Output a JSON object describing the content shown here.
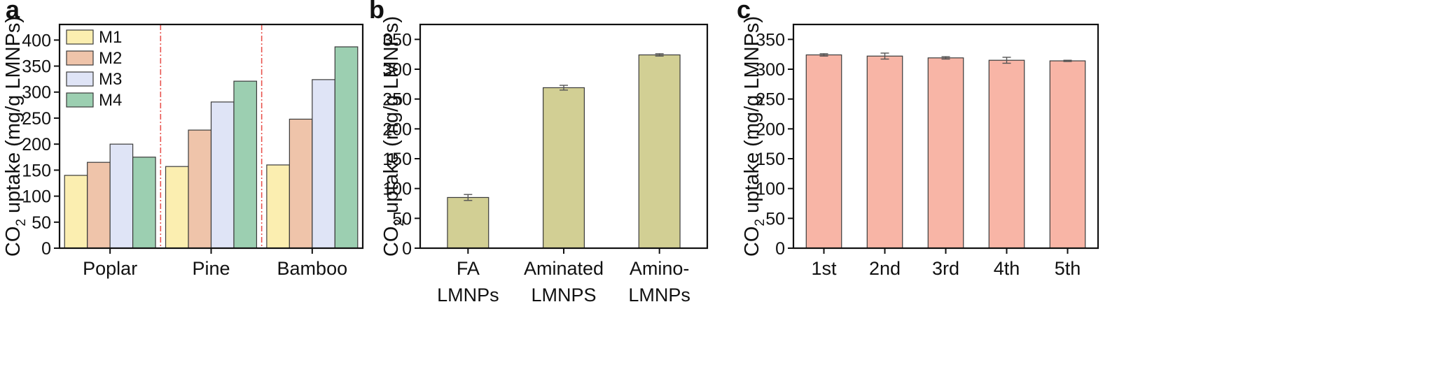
{
  "chart_data": [
    {
      "panel_label": "a",
      "type": "bar",
      "categories": [
        "Poplar",
        "Pine",
        "Bamboo"
      ],
      "series": [
        {
          "name": "M1",
          "values": [
            140,
            157,
            160
          ],
          "color": "#fbeeb0"
        },
        {
          "name": "M2",
          "values": [
            165,
            227,
            248
          ],
          "color": "#efc4aa"
        },
        {
          "name": "M3",
          "values": [
            200,
            281,
            324
          ],
          "color": "#dfe4f6"
        },
        {
          "name": "M4",
          "values": [
            175,
            321,
            387
          ],
          "color": "#9ccfb1"
        }
      ],
      "ylabel_parts": [
        "CO",
        "2",
        " uptake (mg/g LMNPs)"
      ],
      "ylim": [
        0,
        430
      ],
      "yticks": [
        0,
        50,
        100,
        150,
        200,
        250,
        300,
        350,
        400
      ],
      "legend": "top-left",
      "category_separators": "dash-dot",
      "separator_color": "#e8544e"
    },
    {
      "panel_label": "b",
      "type": "bar",
      "categories": [
        [
          "FA",
          "LMNPs"
        ],
        [
          "Aminated",
          "LMNPS"
        ],
        [
          "Amino-",
          "LMNPs"
        ]
      ],
      "values": [
        85,
        269,
        324
      ],
      "errors": [
        5,
        4,
        2
      ],
      "color": "#d2cf94",
      "ylabel_parts": [
        "CO",
        "2",
        " uptake (mg/g LMNPs)"
      ],
      "ylim": [
        0,
        375
      ],
      "yticks": [
        0,
        50,
        100,
        150,
        200,
        250,
        300,
        350
      ]
    },
    {
      "panel_label": "c",
      "type": "bar",
      "categories": [
        "1st",
        "2nd",
        "3rd",
        "4th",
        "5th"
      ],
      "values": [
        324,
        322,
        319,
        315,
        314
      ],
      "errors": [
        2,
        5,
        2,
        5,
        1
      ],
      "color": "#f8b5a6",
      "ylabel_parts": [
        "CO",
        "2",
        " uptake (mg/g LMNPs)"
      ],
      "ylim": [
        0,
        375
      ],
      "yticks": [
        0,
        50,
        100,
        150,
        200,
        250,
        300,
        350
      ]
    }
  ]
}
